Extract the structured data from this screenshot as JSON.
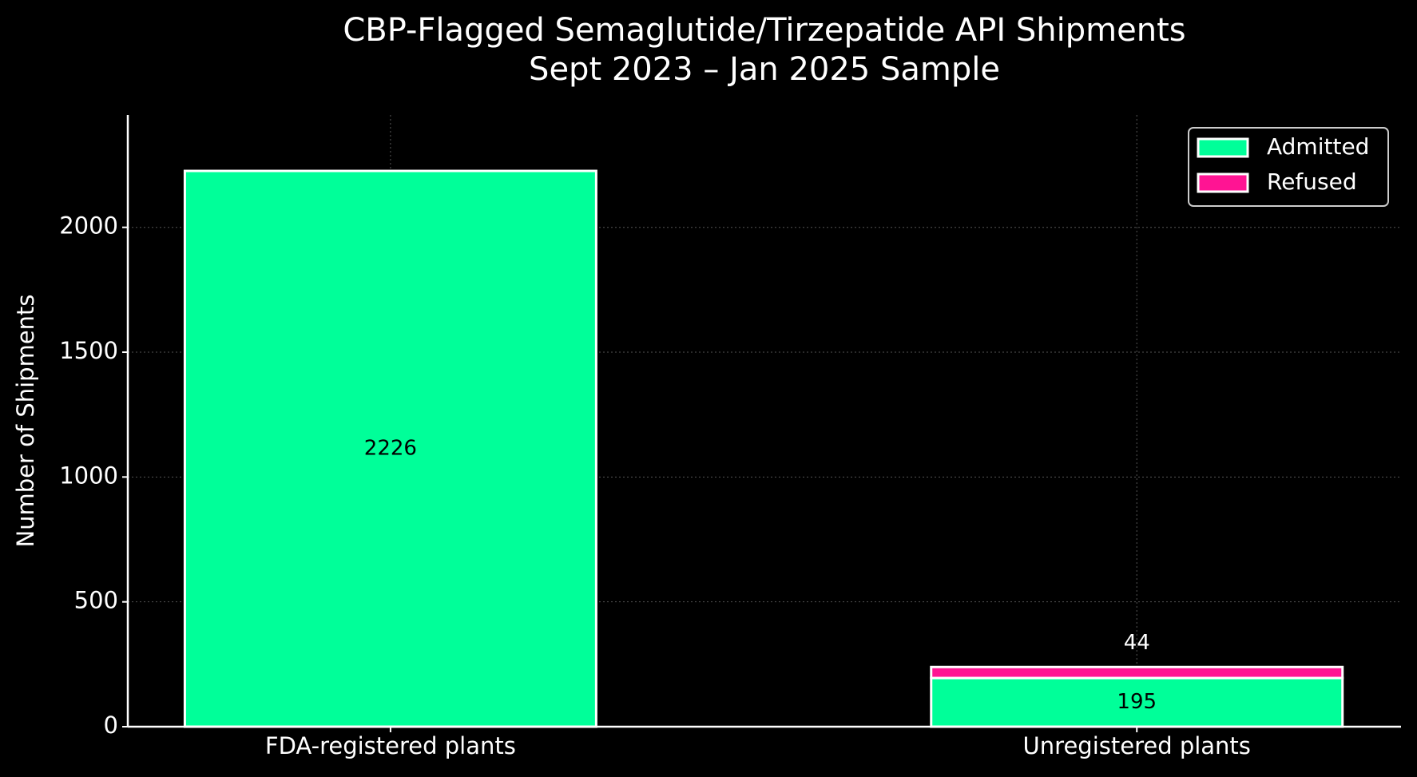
{
  "chart_data": {
    "type": "stacked-bar",
    "title": [
      "CBP-Flagged Semaglutide/Tirzepatide API Shipments",
      "Sept 2023 – Jan 2025 Sample"
    ],
    "y_label": "Number of Shipments",
    "categories": [
      "FDA-registered plants",
      "Unregistered plants"
    ],
    "series": [
      {
        "name": "Admitted",
        "color": "#00ff99",
        "values": [
          2226,
          195
        ]
      },
      {
        "name": "Refused",
        "color": "#ff1493",
        "values": [
          null,
          44
        ]
      }
    ],
    "ylim": [
      0,
      2450
    ],
    "yticks": [
      0,
      500,
      1000,
      1500,
      2000
    ],
    "grid": true,
    "legend": "upper right"
  }
}
